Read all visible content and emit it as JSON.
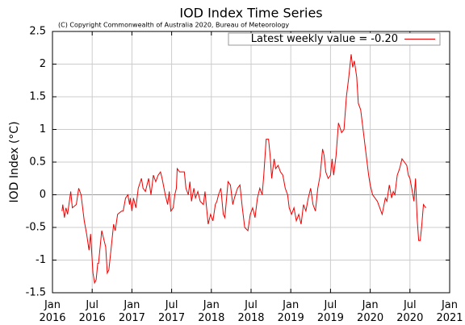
{
  "chart_data": {
    "type": "line",
    "title": "IOD Index Time Series",
    "subtitle": "(C) Copyright Commonwealth of Australia 2020, Bureau of Meteorology",
    "y_label": "IOD Index (°C)",
    "x": [
      2016.12,
      2016.13,
      2016.15,
      2016.17,
      2016.19,
      2016.23,
      2016.25,
      2016.3,
      2016.33,
      2016.36,
      2016.4,
      2016.43,
      2016.46,
      2016.48,
      2016.51,
      2016.53,
      2016.55,
      2016.57,
      2016.58,
      2016.62,
      2016.65,
      2016.67,
      2016.69,
      2016.71,
      2016.74,
      2016.77,
      2016.79,
      2016.82,
      2016.87,
      2016.89,
      2016.92,
      2016.95,
      2016.97,
      2016.98,
      2017.0,
      2017.02,
      2017.05,
      2017.08,
      2017.12,
      2017.14,
      2017.17,
      2017.21,
      2017.24,
      2017.27,
      2017.3,
      2017.33,
      2017.36,
      2017.38,
      2017.42,
      2017.45,
      2017.47,
      2017.49,
      2017.52,
      2017.54,
      2017.56,
      2017.57,
      2017.6,
      2017.66,
      2017.68,
      2017.71,
      2017.73,
      2017.75,
      2017.78,
      2017.8,
      2017.83,
      2017.86,
      2017.9,
      2017.92,
      2017.96,
      2017.99,
      2018.02,
      2018.05,
      2018.07,
      2018.09,
      2018.12,
      2018.15,
      2018.17,
      2018.21,
      2018.24,
      2018.27,
      2018.29,
      2018.33,
      2018.36,
      2018.39,
      2018.42,
      2018.46,
      2018.49,
      2018.52,
      2018.55,
      2018.58,
      2018.61,
      2018.64,
      2018.66,
      2018.69,
      2018.72,
      2018.74,
      2018.76,
      2018.79,
      2018.81,
      2018.84,
      2018.87,
      2018.9,
      2018.93,
      2018.96,
      2018.98,
      2019.01,
      2019.04,
      2019.07,
      2019.1,
      2019.13,
      2019.16,
      2019.19,
      2019.22,
      2019.25,
      2019.28,
      2019.31,
      2019.34,
      2019.37,
      2019.4,
      2019.42,
      2019.44,
      2019.47,
      2019.5,
      2019.52,
      2019.54,
      2019.57,
      2019.6,
      2019.64,
      2019.67,
      2019.7,
      2019.73,
      2019.76,
      2019.78,
      2019.8,
      2019.83,
      2019.85,
      2019.88,
      2019.9,
      2019.92,
      2019.95,
      2019.98,
      2020.0,
      2020.03,
      2020.06,
      2020.09,
      2020.12,
      2020.15,
      2020.19,
      2020.21,
      2020.24,
      2020.27,
      2020.29,
      2020.31,
      2020.34,
      2020.37,
      2020.4,
      2020.43,
      2020.46,
      2020.48,
      2020.5,
      2020.53,
      2020.55,
      2020.57,
      2020.59,
      2020.61,
      2020.63,
      2020.65,
      2020.67,
      2020.7
    ],
    "series": [
      {
        "name": "Latest weekly value = -0.20",
        "color": "#ee0000",
        "values": [
          -0.25,
          -0.15,
          -0.35,
          -0.2,
          -0.3,
          0.05,
          -0.2,
          -0.15,
          0.1,
          0.0,
          -0.4,
          -0.6,
          -0.85,
          -0.6,
          -1.2,
          -1.35,
          -1.3,
          -1.05,
          -1.05,
          -0.55,
          -0.7,
          -0.8,
          -1.2,
          -1.15,
          -0.8,
          -0.45,
          -0.55,
          -0.3,
          -0.25,
          -0.25,
          -0.05,
          0.0,
          -0.15,
          -0.05,
          -0.25,
          -0.05,
          -0.2,
          0.1,
          0.25,
          0.1,
          0.05,
          0.25,
          0.0,
          0.3,
          0.2,
          0.3,
          0.35,
          0.25,
          0.0,
          -0.15,
          0.05,
          -0.25,
          -0.2,
          0.0,
          0.1,
          0.4,
          0.35,
          0.35,
          0.1,
          0.0,
          0.2,
          -0.1,
          0.1,
          -0.05,
          0.05,
          -0.1,
          -0.15,
          0.05,
          -0.45,
          -0.3,
          -0.4,
          -0.15,
          -0.1,
          0.0,
          0.1,
          -0.3,
          -0.35,
          0.2,
          0.15,
          -0.15,
          -0.05,
          0.1,
          0.15,
          -0.2,
          -0.5,
          -0.55,
          -0.3,
          -0.2,
          -0.35,
          -0.05,
          0.1,
          0.0,
          0.3,
          0.85,
          0.85,
          0.6,
          0.25,
          0.55,
          0.4,
          0.45,
          0.35,
          0.3,
          0.1,
          0.0,
          -0.2,
          -0.3,
          -0.2,
          -0.4,
          -0.3,
          -0.45,
          -0.15,
          -0.25,
          -0.05,
          0.1,
          -0.15,
          -0.25,
          0.1,
          0.3,
          0.7,
          0.6,
          0.35,
          0.25,
          0.3,
          0.55,
          0.3,
          0.6,
          1.1,
          0.95,
          1.0,
          1.5,
          1.8,
          2.15,
          1.95,
          2.05,
          1.8,
          1.4,
          1.3,
          1.1,
          0.9,
          0.6,
          0.3,
          0.15,
          0.0,
          -0.05,
          -0.1,
          -0.2,
          -0.3,
          -0.05,
          -0.1,
          0.15,
          -0.05,
          0.05,
          0.0,
          0.3,
          0.4,
          0.55,
          0.5,
          0.45,
          0.3,
          0.25,
          0.05,
          -0.1,
          0.25,
          -0.35,
          -0.7,
          -0.7,
          -0.45,
          -0.15,
          -0.2
        ]
      }
    ],
    "xlim": [
      2016,
      2021
    ],
    "xticks": [
      {
        "value": 2016,
        "label": "Jan 2016"
      },
      {
        "value": 2016.5,
        "label": "Jul 2016"
      },
      {
        "value": 2017,
        "label": "Jan 2017"
      },
      {
        "value": 2017.5,
        "label": "Jul 2017"
      },
      {
        "value": 2018,
        "label": "Jan 2018"
      },
      {
        "value": 2018.5,
        "label": "Jul 2018"
      },
      {
        "value": 2019,
        "label": "Jan 2019"
      },
      {
        "value": 2019.5,
        "label": "Jul 2019"
      },
      {
        "value": 2020,
        "label": "Jan 2020"
      },
      {
        "value": 2020.5,
        "label": "Jul 2020"
      },
      {
        "value": 2021,
        "label": "Jan 2021"
      }
    ],
    "ylim": [
      -1.5,
      2.5
    ],
    "yticks": [
      -1.5,
      -1,
      -0.5,
      0,
      0.5,
      1,
      1.5,
      2,
      2.5
    ],
    "grid": true,
    "legend": "upper right"
  }
}
